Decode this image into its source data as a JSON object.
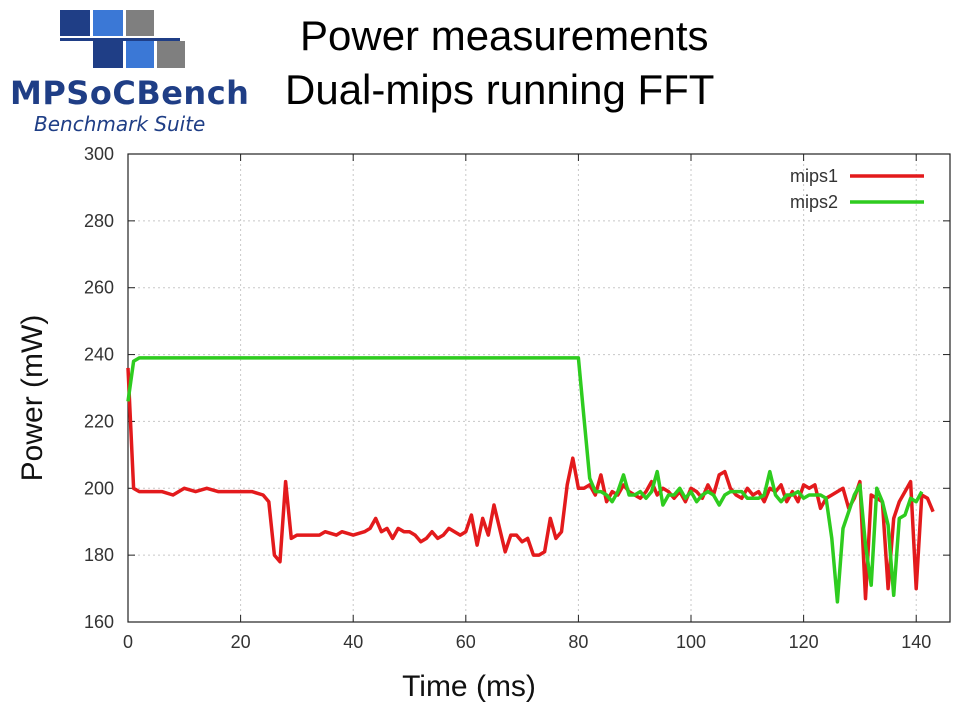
{
  "header": {
    "title_line1": "Power measurements",
    "title_line2": "Dual-mips running FFT"
  },
  "logo": {
    "name": "MPSoCBench",
    "tagline": "Benchmark Suite"
  },
  "chart_data": {
    "type": "line",
    "xlabel": "Time (ms)",
    "ylabel": "Power (mW)",
    "xlim": [
      0,
      146
    ],
    "ylim": [
      160,
      300
    ],
    "xticks": [
      0,
      20,
      40,
      60,
      80,
      100,
      120,
      140
    ],
    "yticks": [
      160,
      180,
      200,
      220,
      240,
      260,
      280,
      300
    ],
    "grid": true,
    "legend_position": "top-right",
    "series": [
      {
        "name": "mips1",
        "color": "#e31a1c",
        "x": [
          0,
          1,
          2,
          4,
          6,
          8,
          10,
          12,
          14,
          16,
          18,
          20,
          22,
          24,
          25,
          26,
          27,
          28,
          29,
          30,
          32,
          34,
          35,
          37,
          38,
          40,
          42,
          43,
          44,
          45,
          46,
          47,
          48,
          49,
          50,
          51,
          52,
          53,
          54,
          55,
          56,
          57,
          58,
          59,
          60,
          61,
          62,
          63,
          64,
          65,
          66,
          67,
          68,
          69,
          70,
          71,
          72,
          73,
          74,
          75,
          76,
          77,
          78,
          79,
          80,
          81,
          82,
          83,
          84,
          85,
          86,
          87,
          88,
          89,
          90,
          91,
          92,
          93,
          94,
          95,
          96,
          97,
          98,
          99,
          100,
          101,
          102,
          103,
          104,
          105,
          106,
          107,
          108,
          109,
          110,
          111,
          112,
          113,
          114,
          115,
          116,
          117,
          118,
          119,
          120,
          121,
          122,
          123,
          124,
          125,
          126,
          127,
          128,
          129,
          130,
          131,
          132,
          133,
          134,
          135,
          136,
          137,
          138,
          139,
          140,
          141,
          142,
          143
        ],
        "values": [
          236,
          200,
          199,
          199,
          199,
          198,
          200,
          199,
          200,
          199,
          199,
          199,
          199,
          198,
          196,
          180,
          178,
          202,
          185,
          186,
          186,
          186,
          187,
          186,
          187,
          186,
          187,
          188,
          191,
          187,
          188,
          185,
          188,
          187,
          187,
          186,
          184,
          185,
          187,
          185,
          186,
          188,
          187,
          186,
          187,
          192,
          183,
          191,
          186,
          195,
          188,
          181,
          186,
          186,
          184,
          185,
          180,
          180,
          181,
          191,
          185,
          187,
          201,
          209,
          200,
          200,
          201,
          198,
          204,
          196,
          199,
          198,
          201,
          199,
          198,
          197,
          199,
          202,
          198,
          200,
          199,
          197,
          199,
          196,
          200,
          199,
          197,
          201,
          198,
          204,
          205,
          200,
          198,
          197,
          200,
          198,
          199,
          196,
          200,
          199,
          201,
          196,
          199,
          196,
          201,
          200,
          201,
          194,
          197,
          198,
          199,
          200,
          194,
          197,
          202,
          167,
          198,
          197,
          196,
          170,
          191,
          196,
          199,
          202,
          170,
          198,
          197,
          193
        ],
        "note": ""
      },
      {
        "name": "mips2",
        "color": "#2ecc1f",
        "x": [
          0,
          1,
          2,
          10,
          20,
          30,
          40,
          50,
          60,
          70,
          80,
          81,
          82,
          83,
          84,
          85,
          86,
          87,
          88,
          89,
          90,
          91,
          92,
          93,
          94,
          95,
          96,
          97,
          98,
          99,
          100,
          101,
          102,
          103,
          104,
          105,
          106,
          107,
          108,
          109,
          110,
          111,
          112,
          113,
          114,
          115,
          116,
          117,
          118,
          119,
          120,
          121,
          122,
          123,
          124,
          125,
          126,
          127,
          128,
          129,
          130,
          131,
          132,
          133,
          134,
          135,
          136,
          137,
          138,
          139,
          140,
          141
        ],
        "values": [
          226,
          238,
          239,
          239,
          239,
          239,
          239,
          239,
          239,
          239,
          239,
          221,
          203,
          199,
          199,
          198,
          196,
          199,
          204,
          198,
          198,
          199,
          197,
          199,
          205,
          195,
          198,
          198,
          200,
          197,
          199,
          196,
          198,
          199,
          198,
          195,
          198,
          199,
          199,
          199,
          197,
          197,
          197,
          198,
          205,
          198,
          196,
          198,
          198,
          199,
          197,
          198,
          198,
          198,
          197,
          185,
          166,
          188,
          193,
          198,
          201,
          183,
          171,
          200,
          196,
          189,
          168,
          191,
          192,
          197,
          196,
          199
        ]
      }
    ]
  }
}
